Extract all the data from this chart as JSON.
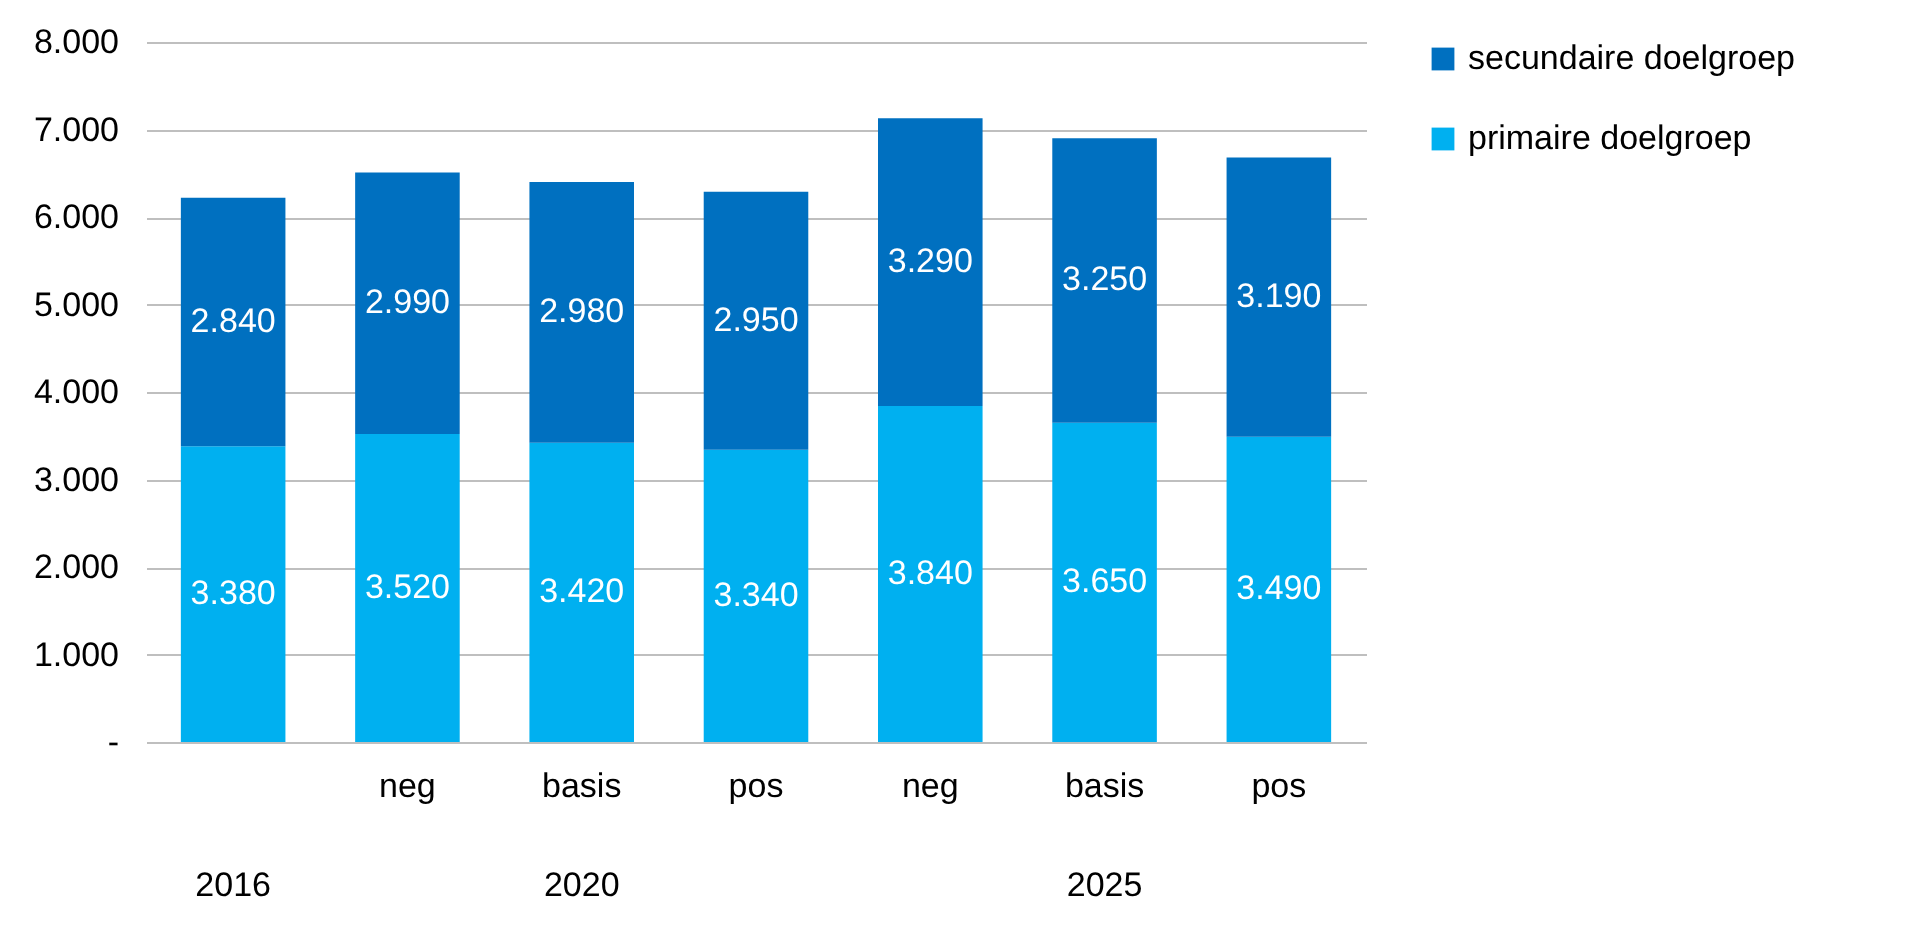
{
  "chart_data": {
    "type": "bar",
    "stacked": true,
    "categories": [
      null,
      "neg",
      "basis",
      "pos",
      "neg",
      "basis",
      "pos"
    ],
    "series": [
      {
        "name": "primaire doelgroep",
        "color": "#00b0f0",
        "values": [
          3380,
          3520,
          3420,
          3340,
          3840,
          3650,
          3490
        ],
        "value_labels": [
          "3.380",
          "3.520",
          "3.420",
          "3.340",
          "3.840",
          "3.650",
          "3.490"
        ]
      },
      {
        "name": "secundaire doelgroep",
        "color": "#0070c0",
        "values": [
          2840,
          2990,
          2980,
          2950,
          3290,
          3250,
          3190
        ],
        "value_labels": [
          "2.840",
          "2.990",
          "2.980",
          "2.950",
          "3.290",
          "3.250",
          "3.190"
        ]
      }
    ],
    "annotations": [
      "2016",
      "2020",
      "2025"
    ],
    "ylim": [
      0,
      8000
    ],
    "yticks": [
      {
        "value": 0,
        "label": "-"
      },
      {
        "value": 1000,
        "label": "1.000"
      },
      {
        "value": 2000,
        "label": "2.000"
      },
      {
        "value": 3000,
        "label": "3.000"
      },
      {
        "value": 4000,
        "label": "4.000"
      },
      {
        "value": 5000,
        "label": "5.000"
      },
      {
        "value": 6000,
        "label": "6.000"
      },
      {
        "value": 7000,
        "label": "7.000"
      },
      {
        "value": 8000,
        "label": "8.000"
      }
    ],
    "grid": "y",
    "legend": "right"
  }
}
